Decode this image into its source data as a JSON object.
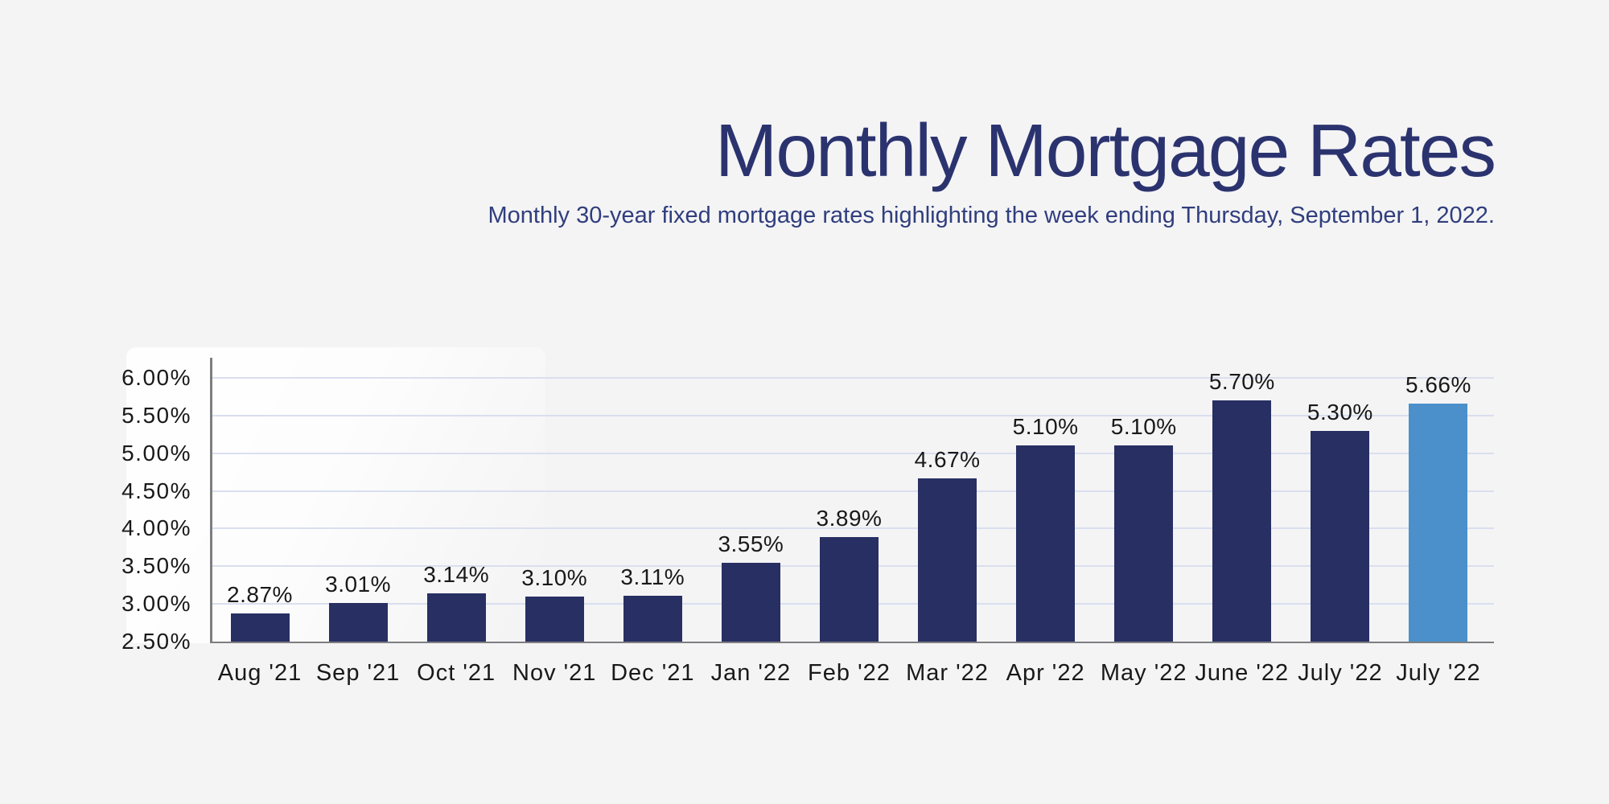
{
  "page": {
    "background_color": "#f4f4f5"
  },
  "header": {
    "title": "Monthly Mortgage Rates",
    "subtitle": "Monthly 30-year fixed mortgage rates highlighting the week ending Thursday, September 1, 2022."
  },
  "chart_data": {
    "type": "bar",
    "title": "Monthly Mortgage Rates",
    "subtitle": "Monthly 30-year fixed mortgage rates highlighting the week ending Thursday, September 1, 2022.",
    "categories": [
      "Aug '21",
      "Sep '21",
      "Oct '21",
      "Nov '21",
      "Dec '21",
      "Jan '22",
      "Feb '22",
      "Mar '22",
      "Apr '22",
      "May '22",
      "June '22",
      "July '22",
      "July '22"
    ],
    "values": [
      2.87,
      3.01,
      3.14,
      3.1,
      3.11,
      3.55,
      3.89,
      4.67,
      5.1,
      5.1,
      5.7,
      5.3,
      5.66
    ],
    "value_labels": [
      "2.87%",
      "3.01%",
      "3.14%",
      "3.10%",
      "3.11%",
      "3.55%",
      "3.89%",
      "4.67%",
      "5.10%",
      "5.10%",
      "5.70%",
      "5.30%",
      "5.66%"
    ],
    "highlighted_index": 12,
    "y_tick_labels": [
      "6.00%",
      "5.50%",
      "5.00%",
      "4.50%",
      "4.00%",
      "3.50%",
      "3.00%",
      "2.50%"
    ],
    "y_tick_values": [
      6.0,
      5.5,
      5.0,
      4.5,
      4.0,
      3.5,
      3.0,
      2.5
    ],
    "ylim": [
      2.5,
      6.0
    ],
    "ytick_step": 0.5,
    "grid": true,
    "legend": "none",
    "xlabel": "",
    "ylabel": "",
    "colors": {
      "bar": "#272f63",
      "highlighted_bar": "#4b90cb",
      "gridline": "#d9dfee",
      "axis_line": "#7e7e80",
      "chart_text": "#191919",
      "title_text": "#2b336f",
      "subtitle_text": "#303e7d",
      "background": "#f4f4f5",
      "highlight_panel": "#ffffff"
    }
  }
}
